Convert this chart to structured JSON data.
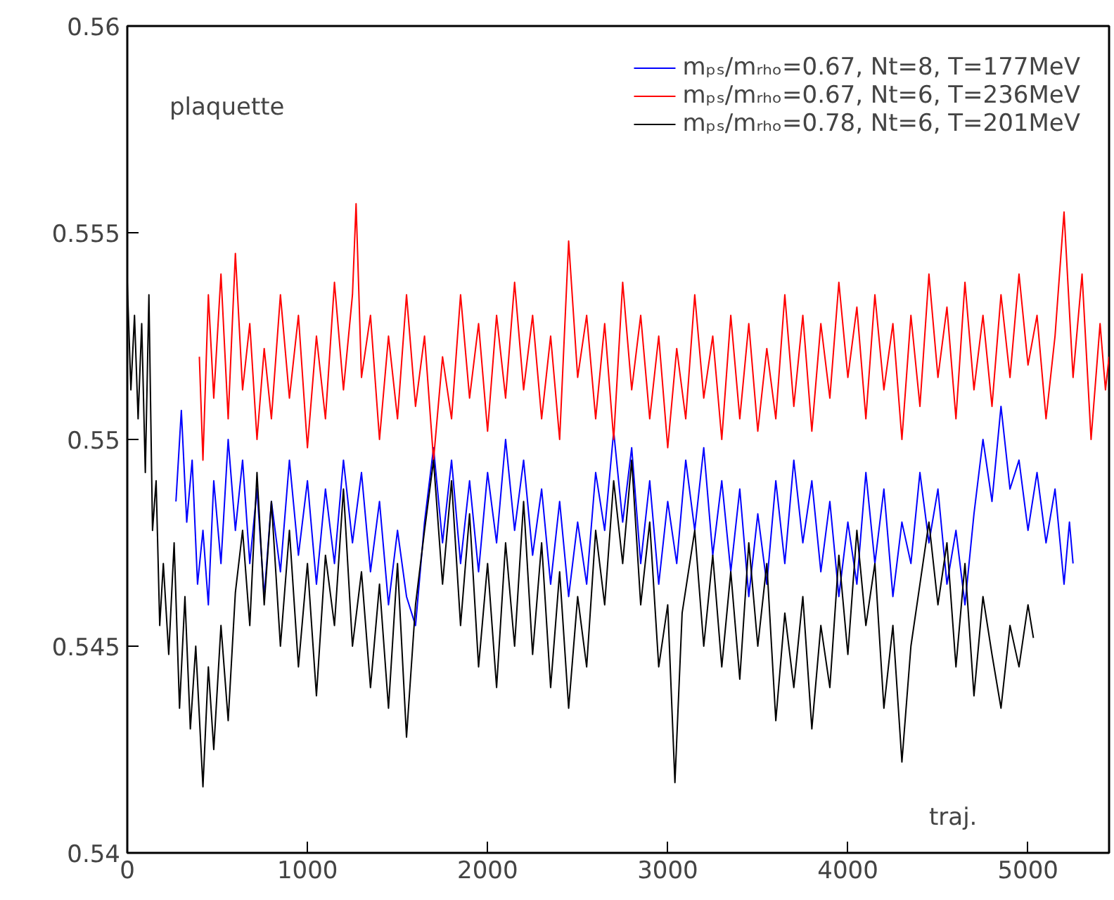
{
  "chart_data": {
    "type": "line",
    "xlabel": "traj.",
    "ylabel": "plaquette",
    "xlim": [
      0,
      5450
    ],
    "ylim": [
      0.54,
      0.56
    ],
    "xticks": [
      0,
      1000,
      2000,
      3000,
      4000,
      5000
    ],
    "yticks": [
      0.54,
      0.545,
      0.55,
      0.555,
      0.56
    ],
    "grid": false,
    "legend": "top right",
    "series": [
      {
        "name": "mₚₛ/mᵣₕₒ=0.67, Nt=8, T=177MeV",
        "color": "#0000ff",
        "x": [
          270,
          300,
          330,
          360,
          390,
          420,
          450,
          480,
          520,
          560,
          600,
          640,
          680,
          720,
          760,
          800,
          850,
          900,
          950,
          1000,
          1050,
          1100,
          1150,
          1200,
          1250,
          1300,
          1350,
          1400,
          1450,
          1500,
          1550,
          1600,
          1650,
          1700,
          1750,
          1800,
          1850,
          1900,
          1950,
          2000,
          2050,
          2100,
          2150,
          2200,
          2250,
          2300,
          2350,
          2400,
          2450,
          2500,
          2550,
          2600,
          2650,
          2700,
          2750,
          2800,
          2850,
          2900,
          2950,
          3000,
          3050,
          3100,
          3150,
          3200,
          3250,
          3300,
          3350,
          3400,
          3450,
          3500,
          3550,
          3600,
          3650,
          3700,
          3750,
          3800,
          3850,
          3900,
          3950,
          4000,
          4050,
          4100,
          4150,
          4200,
          4250,
          4300,
          4350,
          4400,
          4450,
          4500,
          4550,
          4600,
          4650,
          4700,
          4750,
          4800,
          4850,
          4900,
          4950,
          5000,
          5050,
          5100,
          5150,
          5200,
          5230,
          5250
        ],
        "values": [
          0.5485,
          0.5507,
          0.548,
          0.5495,
          0.5465,
          0.5478,
          0.546,
          0.549,
          0.547,
          0.55,
          0.5478,
          0.5495,
          0.547,
          0.5488,
          0.5462,
          0.5485,
          0.5468,
          0.5495,
          0.5472,
          0.549,
          0.5465,
          0.5488,
          0.547,
          0.5495,
          0.5475,
          0.5492,
          0.5468,
          0.5485,
          0.546,
          0.5478,
          0.5462,
          0.5455,
          0.548,
          0.5498,
          0.5475,
          0.5495,
          0.547,
          0.549,
          0.5468,
          0.5492,
          0.5475,
          0.55,
          0.5478,
          0.5495,
          0.5472,
          0.5488,
          0.5465,
          0.5485,
          0.5462,
          0.548,
          0.5465,
          0.5492,
          0.5478,
          0.5502,
          0.548,
          0.5498,
          0.547,
          0.549,
          0.5465,
          0.5485,
          0.547,
          0.5495,
          0.5478,
          0.5498,
          0.5472,
          0.549,
          0.5468,
          0.5488,
          0.5462,
          0.5482,
          0.5465,
          0.549,
          0.547,
          0.5495,
          0.5475,
          0.549,
          0.5468,
          0.5485,
          0.5462,
          0.548,
          0.5465,
          0.5492,
          0.547,
          0.5488,
          0.5462,
          0.548,
          0.547,
          0.5492,
          0.5475,
          0.5488,
          0.5465,
          0.5478,
          0.546,
          0.5482,
          0.55,
          0.5485,
          0.5508,
          0.5488,
          0.5495,
          0.5478,
          0.5492,
          0.5475,
          0.5488,
          0.5465,
          0.548,
          0.547
        ]
      },
      {
        "name": "mₚₛ/mᵣₕₒ=0.67, Nt=6, T=236MeV",
        "color": "#ff0000",
        "x": [
          400,
          420,
          450,
          480,
          520,
          560,
          600,
          640,
          680,
          720,
          760,
          800,
          850,
          900,
          950,
          1000,
          1050,
          1100,
          1150,
          1200,
          1250,
          1270,
          1300,
          1350,
          1400,
          1450,
          1500,
          1550,
          1600,
          1650,
          1700,
          1750,
          1800,
          1850,
          1900,
          1950,
          2000,
          2050,
          2100,
          2150,
          2200,
          2250,
          2300,
          2350,
          2400,
          2450,
          2500,
          2550,
          2600,
          2650,
          2700,
          2750,
          2800,
          2850,
          2900,
          2950,
          3000,
          3050,
          3100,
          3150,
          3200,
          3250,
          3300,
          3350,
          3400,
          3450,
          3500,
          3550,
          3600,
          3650,
          3700,
          3750,
          3800,
          3850,
          3900,
          3950,
          4000,
          4050,
          4100,
          4150,
          4200,
          4250,
          4300,
          4350,
          4400,
          4450,
          4500,
          4550,
          4600,
          4650,
          4700,
          4750,
          4800,
          4850,
          4900,
          4950,
          5000,
          5050,
          5100,
          5150,
          5200,
          5250,
          5300,
          5350,
          5400,
          5430,
          5450
        ],
        "values": [
          0.552,
          0.5495,
          0.5535,
          0.551,
          0.554,
          0.5505,
          0.5545,
          0.5512,
          0.5528,
          0.55,
          0.5522,
          0.5505,
          0.5535,
          0.551,
          0.553,
          0.5498,
          0.5525,
          0.5505,
          0.5538,
          0.5512,
          0.5535,
          0.5557,
          0.5515,
          0.553,
          0.55,
          0.5525,
          0.5505,
          0.5535,
          0.5508,
          0.5525,
          0.5495,
          0.552,
          0.5505,
          0.5535,
          0.551,
          0.5528,
          0.5502,
          0.553,
          0.551,
          0.5538,
          0.5512,
          0.553,
          0.5505,
          0.5525,
          0.55,
          0.5548,
          0.5515,
          0.553,
          0.5505,
          0.5528,
          0.55,
          0.5538,
          0.5512,
          0.553,
          0.5505,
          0.5525,
          0.5498,
          0.5522,
          0.5505,
          0.5535,
          0.551,
          0.5525,
          0.55,
          0.553,
          0.5505,
          0.5528,
          0.5502,
          0.5522,
          0.5505,
          0.5535,
          0.5508,
          0.553,
          0.5502,
          0.5528,
          0.551,
          0.5538,
          0.5515,
          0.5532,
          0.5505,
          0.5535,
          0.5512,
          0.5528,
          0.55,
          0.553,
          0.5508,
          0.554,
          0.5515,
          0.5532,
          0.5505,
          0.5538,
          0.5512,
          0.553,
          0.5508,
          0.5535,
          0.5515,
          0.554,
          0.5518,
          0.553,
          0.5505,
          0.5525,
          0.5555,
          0.5515,
          0.554,
          0.55,
          0.5528,
          0.5512,
          0.552
        ]
      },
      {
        "name": "mₚₛ/mᵣₕₒ=0.78, Nt=6, T=201MeV",
        "color": "#000000",
        "x": [
          0,
          20,
          40,
          60,
          80,
          100,
          120,
          140,
          160,
          180,
          200,
          230,
          260,
          290,
          320,
          350,
          380,
          420,
          450,
          480,
          520,
          560,
          600,
          640,
          680,
          720,
          760,
          800,
          850,
          900,
          950,
          1000,
          1050,
          1100,
          1150,
          1200,
          1250,
          1300,
          1350,
          1400,
          1450,
          1500,
          1550,
          1600,
          1650,
          1700,
          1750,
          1800,
          1850,
          1900,
          1950,
          2000,
          2050,
          2100,
          2150,
          2200,
          2250,
          2300,
          2350,
          2400,
          2450,
          2500,
          2550,
          2600,
          2650,
          2700,
          2750,
          2800,
          2850,
          2900,
          2950,
          3000,
          3040,
          3080,
          3150,
          3200,
          3250,
          3300,
          3350,
          3400,
          3450,
          3500,
          3550,
          3600,
          3650,
          3700,
          3750,
          3800,
          3850,
          3900,
          3950,
          4000,
          4050,
          4100,
          4150,
          4200,
          4250,
          4300,
          4350,
          4400,
          4450,
          4500,
          4550,
          4600,
          4650,
          4700,
          4750,
          4800,
          4850,
          4900,
          4950,
          5000,
          5030
        ],
        "values": [
          0.5538,
          0.5512,
          0.553,
          0.5505,
          0.5528,
          0.5492,
          0.5535,
          0.5478,
          0.549,
          0.5455,
          0.547,
          0.5448,
          0.5475,
          0.5435,
          0.5462,
          0.543,
          0.545,
          0.5416,
          0.5445,
          0.5425,
          0.5455,
          0.5432,
          0.5463,
          0.5478,
          0.5455,
          0.5492,
          0.546,
          0.5485,
          0.545,
          0.5478,
          0.5445,
          0.547,
          0.5438,
          0.5472,
          0.5455,
          0.5488,
          0.545,
          0.5468,
          0.544,
          0.5465,
          0.5435,
          0.547,
          0.5428,
          0.546,
          0.5478,
          0.5495,
          0.5465,
          0.549,
          0.5455,
          0.5482,
          0.5445,
          0.547,
          0.544,
          0.5475,
          0.545,
          0.5485,
          0.5448,
          0.5475,
          0.544,
          0.5468,
          0.5435,
          0.5462,
          0.5445,
          0.5478,
          0.546,
          0.549,
          0.547,
          0.5495,
          0.546,
          0.548,
          0.5445,
          0.546,
          0.5417,
          0.5458,
          0.5478,
          0.545,
          0.5472,
          0.5445,
          0.5468,
          0.5442,
          0.5475,
          0.545,
          0.547,
          0.5432,
          0.5458,
          0.544,
          0.5462,
          0.543,
          0.5455,
          0.544,
          0.5472,
          0.5448,
          0.5478,
          0.5455,
          0.547,
          0.5435,
          0.5455,
          0.5422,
          0.545,
          0.5465,
          0.548,
          0.546,
          0.5475,
          0.5445,
          0.547,
          0.5438,
          0.5462,
          0.5448,
          0.5435,
          0.5455,
          0.5445,
          0.546,
          0.5452
        ]
      }
    ]
  }
}
